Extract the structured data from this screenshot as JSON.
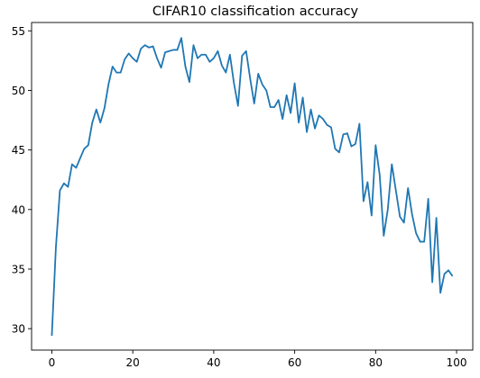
{
  "chart_data": {
    "type": "line",
    "title": "CIFAR10 classification accuracy",
    "xlabel": "",
    "ylabel": "",
    "xlim": [
      -5,
      104
    ],
    "ylim": [
      28.2,
      55.7
    ],
    "xticks": [
      0,
      20,
      40,
      60,
      80,
      100
    ],
    "yticks": [
      30,
      35,
      40,
      45,
      50,
      55
    ],
    "grid": false,
    "series": [
      {
        "color": "#1f77b4",
        "x": [
          0,
          1,
          2,
          3,
          4,
          5,
          6,
          7,
          8,
          9,
          10,
          11,
          12,
          13,
          14,
          15,
          16,
          17,
          18,
          19,
          20,
          21,
          22,
          23,
          24,
          25,
          26,
          27,
          28,
          29,
          30,
          31,
          32,
          33,
          34,
          35,
          36,
          37,
          38,
          39,
          40,
          41,
          42,
          43,
          44,
          45,
          46,
          47,
          48,
          49,
          50,
          51,
          52,
          53,
          54,
          55,
          56,
          57,
          58,
          59,
          60,
          61,
          62,
          63,
          64,
          65,
          66,
          67,
          68,
          69,
          70,
          71,
          72,
          73,
          74,
          75,
          76,
          77,
          78,
          79,
          80,
          81,
          82,
          83,
          84,
          85,
          86,
          87,
          88,
          89,
          90,
          91,
          92,
          93,
          94,
          95,
          96,
          97,
          98,
          99
        ],
        "y": [
          29.4,
          36.8,
          41.6,
          42.2,
          41.9,
          43.8,
          43.5,
          44.3,
          45.1,
          45.4,
          47.3,
          48.4,
          47.3,
          48.5,
          50.5,
          52.0,
          51.5,
          51.5,
          52.6,
          53.1,
          52.7,
          52.4,
          53.5,
          53.8,
          53.6,
          53.7,
          52.7,
          51.9,
          53.2,
          53.3,
          53.4,
          53.4,
          54.4,
          52.0,
          50.7,
          53.8,
          52.7,
          53.0,
          53.0,
          52.4,
          52.7,
          53.3,
          52.1,
          51.5,
          53.0,
          50.6,
          48.7,
          52.9,
          53.3,
          51.0,
          48.9,
          51.4,
          50.5,
          50.0,
          48.6,
          48.6,
          49.2,
          47.6,
          49.6,
          48.1,
          50.6,
          47.3,
          49.4,
          46.5,
          48.4,
          46.8,
          47.9,
          47.6,
          47.1,
          46.9,
          45.1,
          44.8,
          46.3,
          46.4,
          45.3,
          45.5,
          47.2,
          40.7,
          42.3,
          39.5,
          45.4,
          42.9,
          37.8,
          40.0,
          43.8,
          41.6,
          39.4,
          38.9,
          41.8,
          39.6,
          38.0,
          37.3,
          37.3,
          40.9,
          33.9,
          39.3,
          33.0,
          34.6,
          34.9,
          34.4
        ]
      }
    ]
  }
}
